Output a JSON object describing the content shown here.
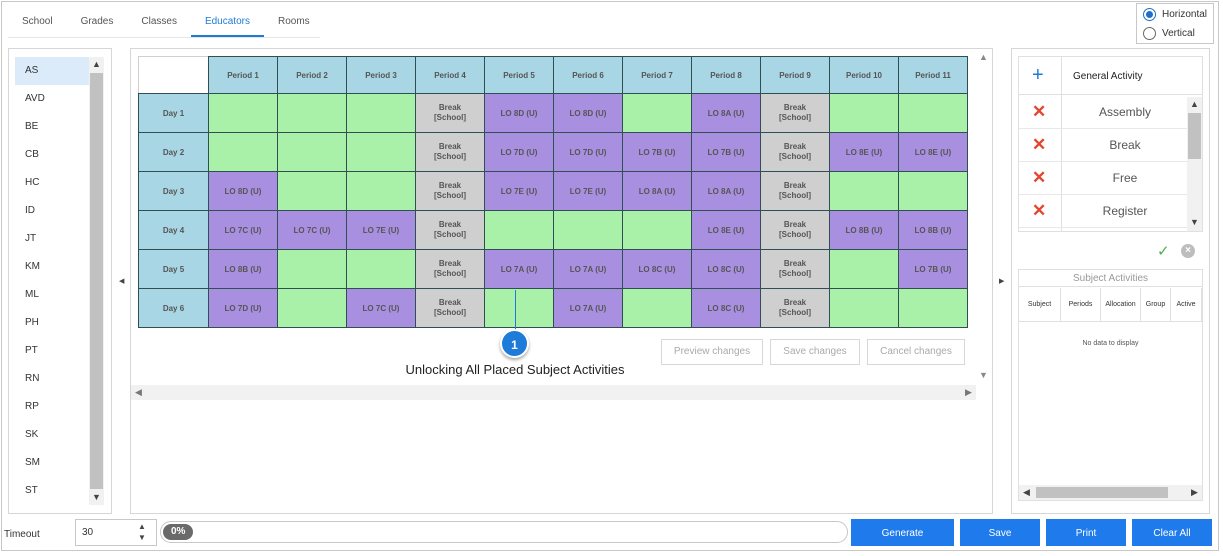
{
  "tabs": [
    {
      "label": "School"
    },
    {
      "label": "Grades"
    },
    {
      "label": "Classes"
    },
    {
      "label": "Educators",
      "active": true
    },
    {
      "label": "Rooms"
    }
  ],
  "orientation": {
    "options": [
      "Horizontal",
      "Vertical"
    ],
    "selected": "Horizontal"
  },
  "educators": {
    "selected": "AS",
    "items": [
      "AS",
      "AVD",
      "BE",
      "CB",
      "HC",
      "ID",
      "JT",
      "KM",
      "ML",
      "PH",
      "PT",
      "RN",
      "RP",
      "SK",
      "SM",
      "ST"
    ]
  },
  "timetable": {
    "periods": [
      "Period 1",
      "Period 2",
      "Period 3",
      "Period 4",
      "Period 5",
      "Period 6",
      "Period 7",
      "Period 8",
      "Period 9",
      "Period 10",
      "Period 11"
    ],
    "rows": [
      {
        "day": "Day 1",
        "cells": [
          {
            "t": "empty",
            "text": ""
          },
          {
            "t": "empty",
            "text": ""
          },
          {
            "t": "empty",
            "text": ""
          },
          {
            "t": "break",
            "text": "Break",
            "sub": "[School]"
          },
          {
            "t": "lo",
            "text": "LO 8D (U)"
          },
          {
            "t": "lo",
            "text": "LO 8D (U)"
          },
          {
            "t": "empty",
            "text": ""
          },
          {
            "t": "lo",
            "text": "LO 8A (U)"
          },
          {
            "t": "break",
            "text": "Break",
            "sub": "[School]"
          },
          {
            "t": "empty",
            "text": ""
          },
          {
            "t": "empty",
            "text": ""
          }
        ]
      },
      {
        "day": "Day 2",
        "cells": [
          {
            "t": "empty",
            "text": ""
          },
          {
            "t": "empty",
            "text": ""
          },
          {
            "t": "empty",
            "text": ""
          },
          {
            "t": "break",
            "text": "Break",
            "sub": "[School]"
          },
          {
            "t": "lo",
            "text": "LO 7D (U)"
          },
          {
            "t": "lo",
            "text": "LO 7D (U)"
          },
          {
            "t": "lo",
            "text": "LO 7B (U)"
          },
          {
            "t": "lo",
            "text": "LO 7B (U)"
          },
          {
            "t": "break",
            "text": "Break",
            "sub": "[School]"
          },
          {
            "t": "lo",
            "text": "LO 8E (U)"
          },
          {
            "t": "lo",
            "text": "LO 8E (U)"
          }
        ]
      },
      {
        "day": "Day 3",
        "cells": [
          {
            "t": "lo",
            "text": "LO 8D (U)"
          },
          {
            "t": "empty",
            "text": ""
          },
          {
            "t": "empty",
            "text": ""
          },
          {
            "t": "break",
            "text": "Break",
            "sub": "[School]"
          },
          {
            "t": "lo",
            "text": "LO 7E (U)"
          },
          {
            "t": "lo",
            "text": "LO 7E (U)"
          },
          {
            "t": "lo",
            "text": "LO 8A (U)"
          },
          {
            "t": "lo",
            "text": "LO 8A (U)"
          },
          {
            "t": "break",
            "text": "Break",
            "sub": "[School]"
          },
          {
            "t": "empty",
            "text": ""
          },
          {
            "t": "empty",
            "text": ""
          }
        ]
      },
      {
        "day": "Day 4",
        "cells": [
          {
            "t": "lo",
            "text": "LO 7C (U)"
          },
          {
            "t": "lo",
            "text": "LO 7C (U)"
          },
          {
            "t": "lo",
            "text": "LO 7E (U)"
          },
          {
            "t": "break",
            "text": "Break",
            "sub": "[School]"
          },
          {
            "t": "empty",
            "text": ""
          },
          {
            "t": "empty",
            "text": ""
          },
          {
            "t": "empty",
            "text": ""
          },
          {
            "t": "lo",
            "text": "LO 8E (U)"
          },
          {
            "t": "break",
            "text": "Break",
            "sub": "[School]"
          },
          {
            "t": "lo",
            "text": "LO 8B (U)"
          },
          {
            "t": "lo",
            "text": "LO 8B (U)"
          }
        ]
      },
      {
        "day": "Day 5",
        "cells": [
          {
            "t": "lo",
            "text": "LO 8B (U)"
          },
          {
            "t": "empty",
            "text": ""
          },
          {
            "t": "empty",
            "text": ""
          },
          {
            "t": "break",
            "text": "Break",
            "sub": "[School]"
          },
          {
            "t": "lo",
            "text": "LO 7A (U)"
          },
          {
            "t": "lo",
            "text": "LO 7A (U)"
          },
          {
            "t": "lo",
            "text": "LO 8C (U)"
          },
          {
            "t": "lo",
            "text": "LO 8C (U)"
          },
          {
            "t": "break",
            "text": "Break",
            "sub": "[School]"
          },
          {
            "t": "empty",
            "text": ""
          },
          {
            "t": "lo",
            "text": "LO 7B (U)"
          }
        ]
      },
      {
        "day": "Day 6",
        "cells": [
          {
            "t": "lo",
            "text": "LO 7D (U)"
          },
          {
            "t": "empty",
            "text": ""
          },
          {
            "t": "lo",
            "text": "LO 7C (U)"
          },
          {
            "t": "break",
            "text": "Break",
            "sub": "[School]"
          },
          {
            "t": "empty",
            "text": ""
          },
          {
            "t": "lo",
            "text": "LO 7A (U)"
          },
          {
            "t": "empty",
            "text": ""
          },
          {
            "t": "lo",
            "text": "LO 8C (U)"
          },
          {
            "t": "break",
            "text": "Break",
            "sub": "[School]"
          },
          {
            "t": "empty",
            "text": ""
          },
          {
            "t": "empty",
            "text": ""
          }
        ]
      }
    ]
  },
  "callout": {
    "number": "1",
    "caption": "Unlocking All Placed Subject Activities"
  },
  "change_buttons": {
    "preview": "Preview changes",
    "save": "Save changes",
    "cancel": "Cancel changes"
  },
  "activities": {
    "header": "General Activity",
    "items": [
      "Assembly",
      "Break",
      "Free",
      "Register"
    ]
  },
  "subject_activities": {
    "title": "Subject Activities",
    "columns": [
      "Subject",
      "Periods",
      "Allocation",
      "Group",
      "Active"
    ],
    "empty_text": "No data to display"
  },
  "bottom": {
    "timeout_label": "Timeout",
    "timeout_value": "30",
    "progress_text": "0%",
    "progress_value": 0,
    "buttons": {
      "generate": "Generate",
      "save": "Save",
      "print": "Print",
      "clear_all": "Clear All"
    }
  },
  "colors": {
    "accent": "#1f7bec",
    "empty_slot": "#a9f0a8",
    "lesson_slot": "#a98fe0",
    "break_slot": "#cfcfcf",
    "header": "#a9d6e4"
  }
}
